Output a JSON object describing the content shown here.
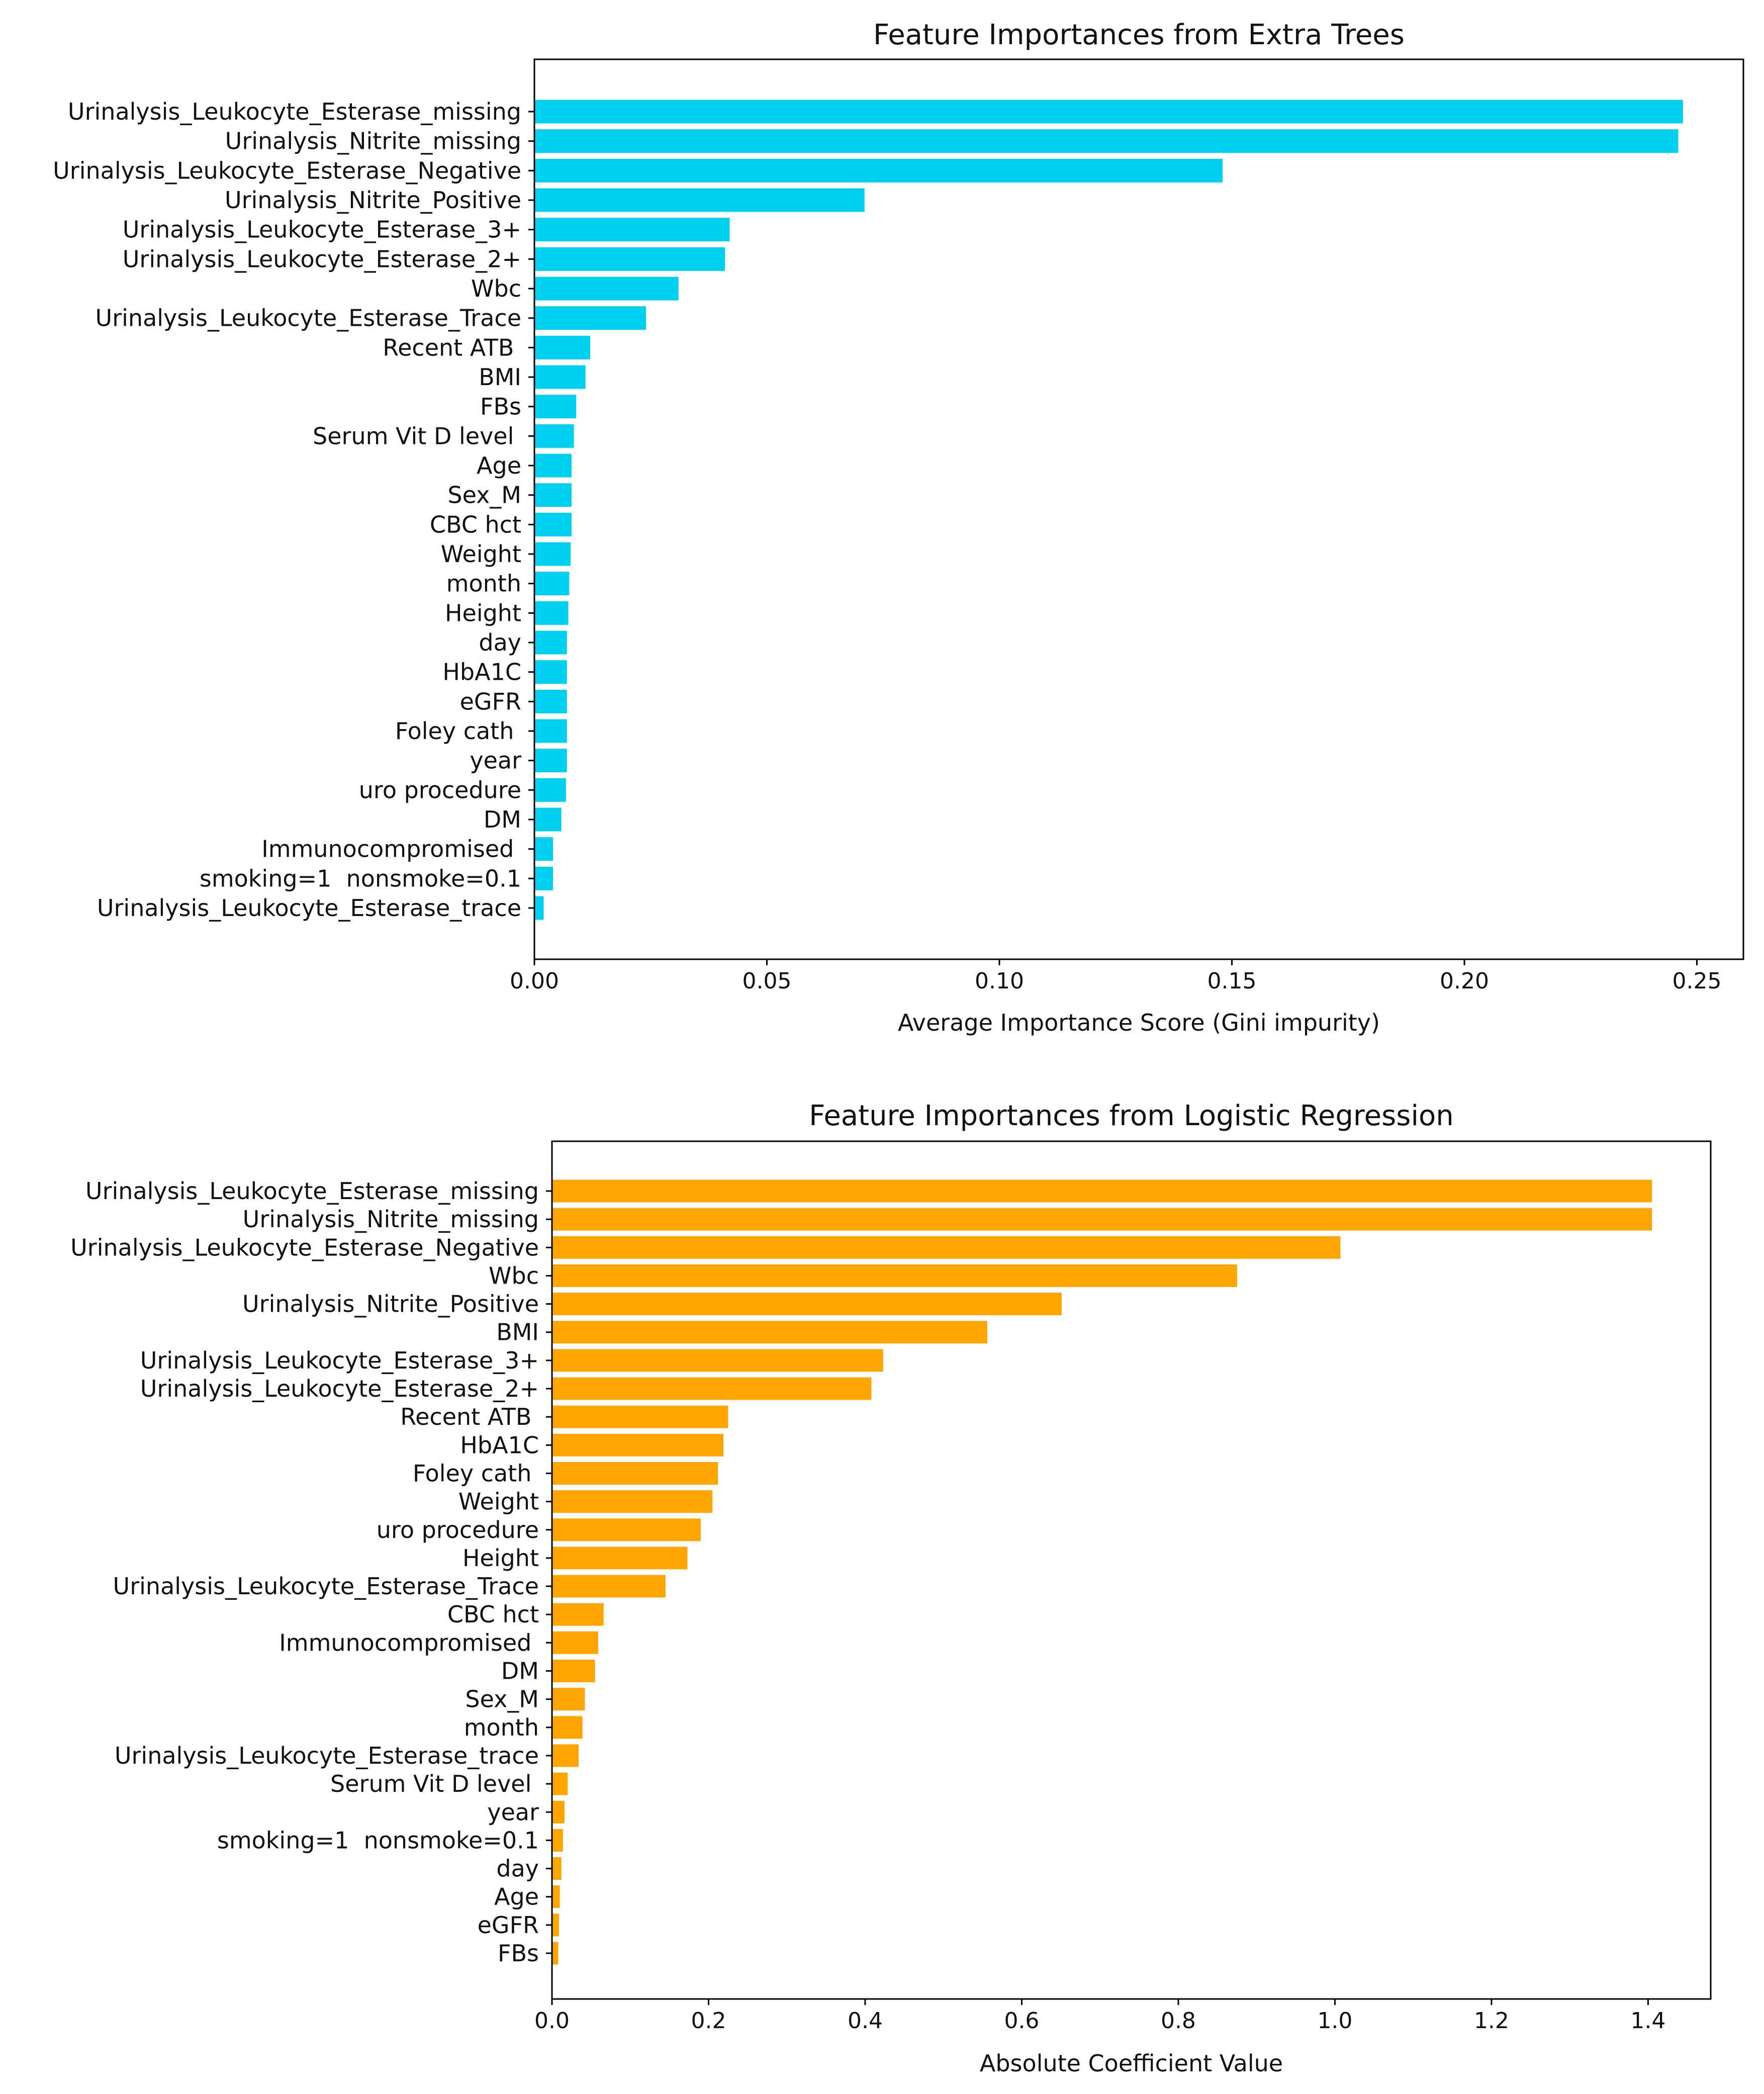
{
  "chart_data": [
    {
      "type": "bar",
      "orientation": "horizontal",
      "title": "Feature Importances from Extra Trees",
      "xlabel": "Average Importance Score (Gini impurity)",
      "ylabel": "",
      "xlim": [
        0,
        0.26
      ],
      "xticks": [
        "0.00",
        "0.05",
        "0.10",
        "0.15",
        "0.20",
        "0.25"
      ],
      "xtick_values": [
        0,
        0.05,
        0.1,
        0.15,
        0.2,
        0.25
      ],
      "grid": false,
      "color": "#00d0f0",
      "categories": [
        "Urinalysis_Leukocyte_Esterase_missing",
        "Urinalysis_Nitrite_missing",
        "Urinalysis_Leukocyte_Esterase_Negative",
        "Urinalysis_Nitrite_Positive",
        "Urinalysis_Leukocyte_Esterase_3+",
        "Urinalysis_Leukocyte_Esterase_2+",
        "Wbc",
        "Urinalysis_Leukocyte_Esterase_Trace",
        "Recent ATB ",
        "BMI",
        "FBs",
        "Serum Vit D level ",
        "Age",
        "Sex_M",
        "CBC hct",
        "Weight",
        "month",
        "Height",
        "day",
        "HbA1C",
        "eGFR",
        "Foley cath ",
        "year",
        "uro procedure",
        "DM",
        "Immunocompromised ",
        "smoking=1  nonsmoke=0.1",
        "Urinalysis_Leukocyte_Esterase_trace"
      ],
      "values": [
        0.247,
        0.246,
        0.148,
        0.071,
        0.042,
        0.041,
        0.031,
        0.024,
        0.012,
        0.011,
        0.009,
        0.0085,
        0.008,
        0.008,
        0.008,
        0.0078,
        0.0075,
        0.0073,
        0.007,
        0.007,
        0.007,
        0.007,
        0.007,
        0.0068,
        0.0058,
        0.004,
        0.004,
        0.002
      ]
    },
    {
      "type": "bar",
      "orientation": "horizontal",
      "title": "Feature Importances from Logistic Regression",
      "xlabel": "Absolute Coefficient Value",
      "ylabel": "",
      "xlim": [
        0,
        1.48
      ],
      "xticks": [
        "0.0",
        "0.2",
        "0.4",
        "0.6",
        "0.8",
        "1.0",
        "1.2",
        "1.4"
      ],
      "xtick_values": [
        0,
        0.2,
        0.4,
        0.6,
        0.8,
        1.0,
        1.2,
        1.4
      ],
      "grid": false,
      "color": "#ffa500",
      "categories": [
        "Urinalysis_Leukocyte_Esterase_missing",
        "Urinalysis_Nitrite_missing",
        "Urinalysis_Leukocyte_Esterase_Negative",
        "Wbc",
        "Urinalysis_Nitrite_Positive",
        "BMI",
        "Urinalysis_Leukocyte_Esterase_3+",
        "Urinalysis_Leukocyte_Esterase_2+",
        "Recent ATB ",
        "HbA1C",
        "Foley cath ",
        "Weight",
        "uro procedure",
        "Height",
        "Urinalysis_Leukocyte_Esterase_Trace",
        "CBC hct",
        "Immunocompromised ",
        "DM",
        "Sex_M",
        "month",
        "Urinalysis_Leukocyte_Esterase_trace",
        "Serum Vit D level ",
        "year",
        "smoking=1  nonsmoke=0.1",
        "day",
        "Age",
        "eGFR",
        "FBs"
      ],
      "values": [
        1.405,
        1.405,
        1.007,
        0.875,
        0.651,
        0.556,
        0.423,
        0.408,
        0.225,
        0.219,
        0.212,
        0.205,
        0.19,
        0.173,
        0.145,
        0.066,
        0.059,
        0.055,
        0.042,
        0.039,
        0.034,
        0.02,
        0.016,
        0.014,
        0.012,
        0.01,
        0.009,
        0.008
      ]
    }
  ]
}
